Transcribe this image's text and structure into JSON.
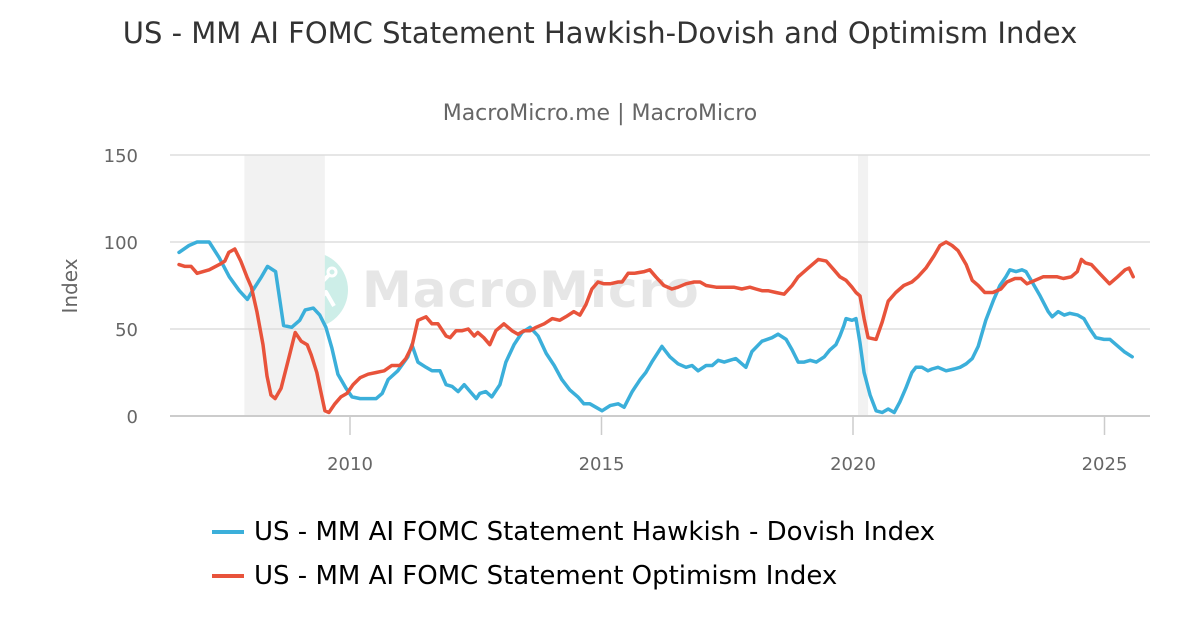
{
  "header": {
    "title": "US - MM AI FOMC Statement Hawkish-Dovish and Optimism Index",
    "subtitle": "MacroMicro.me | MacroMicro"
  },
  "watermark": {
    "text": "MacroMicro",
    "icon": "macromicro-logo-icon"
  },
  "colors": {
    "hawkish_dovish": "#3bafda",
    "optimism": "#e8533b",
    "recession": "#f2f2f2",
    "grid": "#dddddd"
  },
  "legend": {
    "items": [
      {
        "label": "US - MM AI FOMC Statement Hawkish - Dovish Index",
        "color": "#3bafda"
      },
      {
        "label": "US - MM AI FOMC Statement Optimism Index",
        "color": "#e8533b"
      }
    ]
  },
  "chart_data": {
    "type": "line",
    "title": "US - MM AI FOMC Statement Hawkish-Dovish and Optimism Index",
    "subtitle": "MacroMicro.me | MacroMicro",
    "xlabel": "",
    "ylabel": "Index",
    "ylim": [
      0,
      150
    ],
    "yticks": [
      0,
      50,
      100,
      150
    ],
    "xticks": [
      2010,
      2015,
      2020,
      2025
    ],
    "xlim": [
      2006.4,
      2026.0
    ],
    "grid": true,
    "legend_position": "bottom",
    "recession_bands": [
      [
        2007.9,
        2009.5
      ],
      [
        2020.1,
        2020.3
      ]
    ],
    "series": [
      {
        "name": "US - MM AI FOMC Statement Hawkish - Dovish Index",
        "color": "#3bafda",
        "points": [
          [
            2006.6,
            94
          ],
          [
            2006.8,
            98
          ],
          [
            2006.96,
            100
          ],
          [
            2007.2,
            100
          ],
          [
            2007.4,
            91
          ],
          [
            2007.6,
            80
          ],
          [
            2007.8,
            72
          ],
          [
            2007.96,
            67
          ],
          [
            2008.04,
            71
          ],
          [
            2008.24,
            80
          ],
          [
            2008.36,
            86
          ],
          [
            2008.52,
            83
          ],
          [
            2008.68,
            52
          ],
          [
            2008.84,
            51
          ],
          [
            2009.0,
            55
          ],
          [
            2009.11,
            61
          ],
          [
            2009.27,
            62
          ],
          [
            2009.4,
            58
          ],
          [
            2009.52,
            51
          ],
          [
            2009.64,
            39
          ],
          [
            2009.76,
            24
          ],
          [
            2009.92,
            16
          ],
          [
            2010.04,
            11
          ],
          [
            2010.2,
            10
          ],
          [
            2010.36,
            10
          ],
          [
            2010.52,
            10
          ],
          [
            2010.64,
            13
          ],
          [
            2010.76,
            21
          ],
          [
            2010.95,
            26
          ],
          [
            2011.15,
            34
          ],
          [
            2011.23,
            41
          ],
          [
            2011.35,
            31
          ],
          [
            2011.51,
            28
          ],
          [
            2011.63,
            26
          ],
          [
            2011.79,
            26
          ],
          [
            2011.91,
            18
          ],
          [
            2012.03,
            17
          ],
          [
            2012.15,
            14
          ],
          [
            2012.27,
            18
          ],
          [
            2012.39,
            14
          ],
          [
            2012.51,
            10
          ],
          [
            2012.58,
            13
          ],
          [
            2012.7,
            14
          ],
          [
            2012.82,
            11
          ],
          [
            2012.98,
            18
          ],
          [
            2013.1,
            31
          ],
          [
            2013.26,
            41
          ],
          [
            2013.42,
            48
          ],
          [
            2013.58,
            51
          ],
          [
            2013.74,
            46
          ],
          [
            2013.9,
            36
          ],
          [
            2014.06,
            29
          ],
          [
            2014.21,
            21
          ],
          [
            2014.37,
            15
          ],
          [
            2014.53,
            11
          ],
          [
            2014.65,
            7
          ],
          [
            2014.77,
            7
          ],
          [
            2014.89,
            5
          ],
          [
            2015.01,
            3
          ],
          [
            2015.17,
            6
          ],
          [
            2015.33,
            7
          ],
          [
            2015.45,
            5
          ],
          [
            2015.61,
            14
          ],
          [
            2015.77,
            21
          ],
          [
            2015.88,
            25
          ],
          [
            2016.0,
            31
          ],
          [
            2016.2,
            40
          ],
          [
            2016.36,
            34
          ],
          [
            2016.52,
            30
          ],
          [
            2016.68,
            28
          ],
          [
            2016.8,
            29
          ],
          [
            2016.92,
            26
          ],
          [
            2017.08,
            29
          ],
          [
            2017.2,
            29
          ],
          [
            2017.32,
            32
          ],
          [
            2017.44,
            31
          ],
          [
            2017.55,
            32
          ],
          [
            2017.67,
            33
          ],
          [
            2017.87,
            28
          ],
          [
            2017.99,
            37
          ],
          [
            2018.19,
            43
          ],
          [
            2018.39,
            45
          ],
          [
            2018.51,
            47
          ],
          [
            2018.67,
            44
          ],
          [
            2018.79,
            38
          ],
          [
            2018.91,
            31
          ],
          [
            2019.03,
            31
          ],
          [
            2019.15,
            32
          ],
          [
            2019.27,
            31
          ],
          [
            2019.43,
            34
          ],
          [
            2019.54,
            38
          ],
          [
            2019.66,
            41
          ],
          [
            2019.74,
            46
          ],
          [
            2019.82,
            52
          ],
          [
            2019.86,
            56
          ],
          [
            2019.98,
            55
          ],
          [
            2020.06,
            56
          ],
          [
            2020.14,
            42
          ],
          [
            2020.22,
            25
          ],
          [
            2020.34,
            12
          ],
          [
            2020.46,
            3
          ],
          [
            2020.58,
            2
          ],
          [
            2020.7,
            4
          ],
          [
            2020.82,
            2
          ],
          [
            2020.93,
            8
          ],
          [
            2021.05,
            16
          ],
          [
            2021.17,
            25
          ],
          [
            2021.25,
            28
          ],
          [
            2021.37,
            28
          ],
          [
            2021.49,
            26
          ],
          [
            2021.57,
            27
          ],
          [
            2021.69,
            28
          ],
          [
            2021.85,
            26
          ],
          [
            2022.01,
            27
          ],
          [
            2022.13,
            28
          ],
          [
            2022.25,
            30
          ],
          [
            2022.37,
            33
          ],
          [
            2022.49,
            40
          ],
          [
            2022.64,
            55
          ],
          [
            2022.8,
            67
          ],
          [
            2022.92,
            75
          ],
          [
            2023.04,
            80
          ],
          [
            2023.12,
            84
          ],
          [
            2023.24,
            83
          ],
          [
            2023.36,
            84
          ],
          [
            2023.44,
            83
          ],
          [
            2023.56,
            77
          ],
          [
            2023.72,
            69
          ],
          [
            2023.88,
            60
          ],
          [
            2023.96,
            57
          ],
          [
            2024.08,
            60
          ],
          [
            2024.2,
            58
          ],
          [
            2024.31,
            59
          ],
          [
            2024.47,
            58
          ],
          [
            2024.59,
            56
          ],
          [
            2024.71,
            50
          ],
          [
            2024.83,
            45
          ],
          [
            2024.99,
            44
          ],
          [
            2025.11,
            44
          ],
          [
            2025.23,
            41
          ],
          [
            2025.39,
            37
          ],
          [
            2025.55,
            34
          ]
        ]
      },
      {
        "name": "US - MM AI FOMC Statement Optimism Index",
        "color": "#e8533b",
        "points": [
          [
            2006.6,
            87
          ],
          [
            2006.72,
            86
          ],
          [
            2006.84,
            86
          ],
          [
            2006.96,
            82
          ],
          [
            2007.2,
            84
          ],
          [
            2007.4,
            87
          ],
          [
            2007.51,
            89
          ],
          [
            2007.59,
            94
          ],
          [
            2007.71,
            96
          ],
          [
            2007.83,
            89
          ],
          [
            2007.95,
            80
          ],
          [
            2008.04,
            74
          ],
          [
            2008.15,
            60
          ],
          [
            2008.27,
            41
          ],
          [
            2008.35,
            23
          ],
          [
            2008.43,
            12
          ],
          [
            2008.51,
            10
          ],
          [
            2008.63,
            16
          ],
          [
            2008.79,
            34
          ],
          [
            2008.91,
            48
          ],
          [
            2009.03,
            43
          ],
          [
            2009.15,
            41
          ],
          [
            2009.23,
            35
          ],
          [
            2009.34,
            25
          ],
          [
            2009.42,
            14
          ],
          [
            2009.5,
            3
          ],
          [
            2009.58,
            2
          ],
          [
            2009.7,
            7
          ],
          [
            2009.82,
            11
          ],
          [
            2009.94,
            13
          ],
          [
            2010.06,
            18
          ],
          [
            2010.2,
            22
          ],
          [
            2010.36,
            24
          ],
          [
            2010.52,
            25
          ],
          [
            2010.68,
            26
          ],
          [
            2010.83,
            29
          ],
          [
            2010.99,
            29
          ],
          [
            2011.11,
            33
          ],
          [
            2011.23,
            40
          ],
          [
            2011.35,
            55
          ],
          [
            2011.51,
            57
          ],
          [
            2011.63,
            53
          ],
          [
            2011.75,
            53
          ],
          [
            2011.91,
            46
          ],
          [
            2011.99,
            45
          ],
          [
            2012.11,
            49
          ],
          [
            2012.23,
            49
          ],
          [
            2012.35,
            50
          ],
          [
            2012.47,
            46
          ],
          [
            2012.54,
            48
          ],
          [
            2012.66,
            45
          ],
          [
            2012.78,
            41
          ],
          [
            2012.9,
            49
          ],
          [
            2013.06,
            53
          ],
          [
            2013.22,
            49
          ],
          [
            2013.34,
            47
          ],
          [
            2013.46,
            49
          ],
          [
            2013.58,
            49
          ],
          [
            2013.7,
            51
          ],
          [
            2013.86,
            53
          ],
          [
            2014.02,
            56
          ],
          [
            2014.17,
            55
          ],
          [
            2014.29,
            57
          ],
          [
            2014.45,
            60
          ],
          [
            2014.57,
            58
          ],
          [
            2014.69,
            64
          ],
          [
            2014.81,
            73
          ],
          [
            2014.93,
            77
          ],
          [
            2015.05,
            76
          ],
          [
            2015.17,
            76
          ],
          [
            2015.33,
            77
          ],
          [
            2015.41,
            77
          ],
          [
            2015.53,
            82
          ],
          [
            2015.65,
            82
          ],
          [
            2015.85,
            83
          ],
          [
            2015.96,
            84
          ],
          [
            2016.08,
            80
          ],
          [
            2016.24,
            75
          ],
          [
            2016.4,
            73
          ],
          [
            2016.52,
            74
          ],
          [
            2016.68,
            76
          ],
          [
            2016.84,
            77
          ],
          [
            2016.96,
            77
          ],
          [
            2017.08,
            75
          ],
          [
            2017.28,
            74
          ],
          [
            2017.48,
            74
          ],
          [
            2017.63,
            74
          ],
          [
            2017.79,
            73
          ],
          [
            2017.95,
            74
          ],
          [
            2018.07,
            73
          ],
          [
            2018.19,
            72
          ],
          [
            2018.31,
            72
          ],
          [
            2018.47,
            71
          ],
          [
            2018.63,
            70
          ],
          [
            2018.79,
            75
          ],
          [
            2018.91,
            80
          ],
          [
            2019.11,
            85
          ],
          [
            2019.31,
            90
          ],
          [
            2019.47,
            89
          ],
          [
            2019.62,
            84
          ],
          [
            2019.74,
            80
          ],
          [
            2019.86,
            78
          ],
          [
            2019.98,
            74
          ],
          [
            2020.06,
            71
          ],
          [
            2020.14,
            69
          ],
          [
            2020.22,
            56
          ],
          [
            2020.3,
            45
          ],
          [
            2020.46,
            44
          ],
          [
            2020.58,
            54
          ],
          [
            2020.7,
            66
          ],
          [
            2020.85,
            71
          ],
          [
            2021.01,
            75
          ],
          [
            2021.17,
            77
          ],
          [
            2021.29,
            80
          ],
          [
            2021.45,
            85
          ],
          [
            2021.61,
            92
          ],
          [
            2021.73,
            98
          ],
          [
            2021.85,
            100
          ],
          [
            2021.97,
            98
          ],
          [
            2022.09,
            95
          ],
          [
            2022.25,
            87
          ],
          [
            2022.37,
            78
          ],
          [
            2022.49,
            75
          ],
          [
            2022.62,
            71
          ],
          [
            2022.78,
            71
          ],
          [
            2022.94,
            73
          ],
          [
            2023.06,
            77
          ],
          [
            2023.22,
            79
          ],
          [
            2023.34,
            79
          ],
          [
            2023.46,
            76
          ],
          [
            2023.62,
            78
          ],
          [
            2023.78,
            80
          ],
          [
            2023.9,
            80
          ],
          [
            2024.06,
            80
          ],
          [
            2024.18,
            79
          ],
          [
            2024.34,
            80
          ],
          [
            2024.46,
            83
          ],
          [
            2024.54,
            90
          ],
          [
            2024.62,
            88
          ],
          [
            2024.74,
            87
          ],
          [
            2024.9,
            82
          ],
          [
            2025.1,
            76
          ],
          [
            2025.26,
            80
          ],
          [
            2025.41,
            84
          ],
          [
            2025.49,
            85
          ],
          [
            2025.57,
            80
          ]
        ]
      }
    ]
  }
}
